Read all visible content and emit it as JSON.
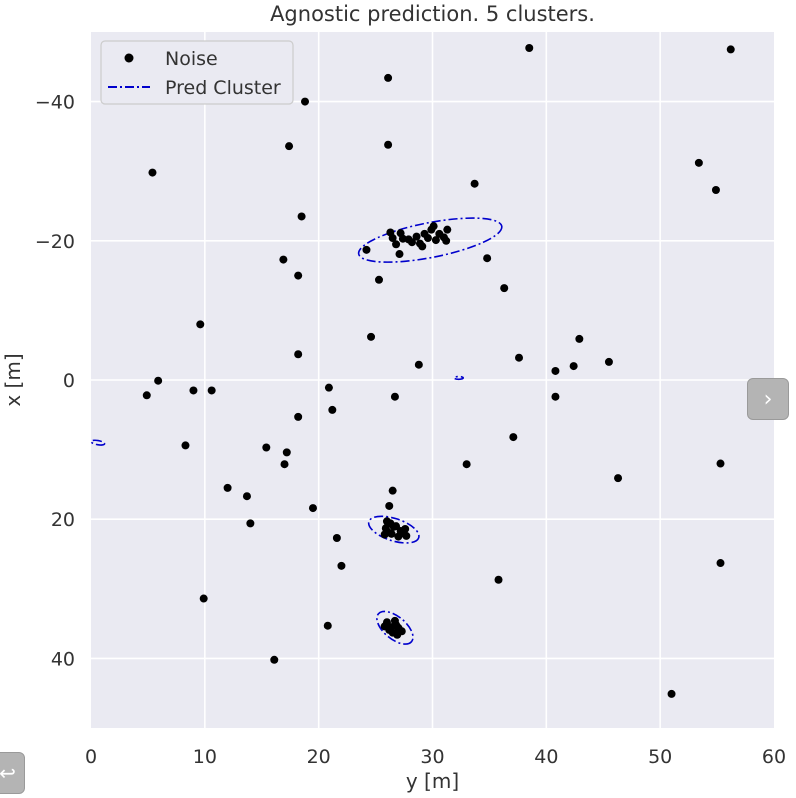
{
  "chart_data": {
    "type": "scatter",
    "title": "Agnostic prediction. 5 clusters.",
    "xlabel": "y [m]",
    "ylabel": "x [m]",
    "xlim": [
      0,
      60
    ],
    "ylim": [
      50,
      -50
    ],
    "y_inverted": true,
    "xticks": [
      0,
      10,
      20,
      30,
      40,
      50,
      60
    ],
    "yticks": [
      -40,
      -20,
      0,
      20,
      40
    ],
    "xtick_labels": [
      "0",
      "10",
      "20",
      "30",
      "40",
      "50",
      "60"
    ],
    "ytick_labels": [
      "−40",
      "−20",
      "0",
      "20",
      "40"
    ],
    "grid": true,
    "legend_position": "top-left",
    "legend": [
      {
        "label": "Noise",
        "marker": "dot",
        "color": "#000000"
      },
      {
        "label": "Pred Cluster",
        "line": "dashdot",
        "color": "#0000cc"
      }
    ],
    "series": [
      {
        "name": "Noise",
        "color": "#000000",
        "points": [
          [
            38.5,
            -47.7
          ],
          [
            56.2,
            -47.5
          ],
          [
            26.1,
            -43.4
          ],
          [
            18.8,
            -40.0
          ],
          [
            17.4,
            -33.6
          ],
          [
            26.1,
            -33.8
          ],
          [
            5.4,
            -29.8
          ],
          [
            53.4,
            -31.2
          ],
          [
            54.9,
            -27.3
          ],
          [
            33.7,
            -28.2
          ],
          [
            18.5,
            -23.5
          ],
          [
            16.9,
            -17.3
          ],
          [
            18.2,
            -15.0
          ],
          [
            25.3,
            -14.4
          ],
          [
            34.8,
            -17.5
          ],
          [
            36.3,
            -13.2
          ],
          [
            9.6,
            -8.0
          ],
          [
            24.6,
            -6.2
          ],
          [
            18.2,
            -3.7
          ],
          [
            42.9,
            -5.9
          ],
          [
            45.5,
            -2.6
          ],
          [
            28.8,
            -2.2
          ],
          [
            37.6,
            -3.2
          ],
          [
            40.8,
            -1.3
          ],
          [
            42.4,
            -2.0
          ],
          [
            5.9,
            0.1
          ],
          [
            4.9,
            2.2
          ],
          [
            9.0,
            1.5
          ],
          [
            10.6,
            1.5
          ],
          [
            20.9,
            1.1
          ],
          [
            26.7,
            2.4
          ],
          [
            40.8,
            2.4
          ],
          [
            21.2,
            4.3
          ],
          [
            18.2,
            5.3
          ],
          [
            8.3,
            9.4
          ],
          [
            15.4,
            9.7
          ],
          [
            17.2,
            10.4
          ],
          [
            37.1,
            8.2
          ],
          [
            17.0,
            12.1
          ],
          [
            33.0,
            12.1
          ],
          [
            55.3,
            12.0
          ],
          [
            46.3,
            14.1
          ],
          [
            12.0,
            15.5
          ],
          [
            26.5,
            15.9
          ],
          [
            13.7,
            16.7
          ],
          [
            26.2,
            18.1
          ],
          [
            19.5,
            18.4
          ],
          [
            14.0,
            20.6
          ],
          [
            21.6,
            22.7
          ],
          [
            22.0,
            26.7
          ],
          [
            35.8,
            28.7
          ],
          [
            55.3,
            26.3
          ],
          [
            9.9,
            31.4
          ],
          [
            20.8,
            35.3
          ],
          [
            16.1,
            40.2
          ],
          [
            51.0,
            45.1
          ],
          [
            24.2,
            -18.7
          ],
          [
            26.3,
            -21.2
          ],
          [
            26.8,
            -19.5
          ],
          [
            27.4,
            -20.3
          ],
          [
            28.2,
            -19.8
          ],
          [
            28.6,
            -20.6
          ],
          [
            29.1,
            -19.2
          ],
          [
            29.6,
            -20.4
          ],
          [
            29.9,
            -21.6
          ],
          [
            30.3,
            -20.1
          ],
          [
            30.6,
            -21.0
          ],
          [
            31.0,
            -20.5
          ],
          [
            31.3,
            -21.6
          ],
          [
            30.1,
            -22.1
          ],
          [
            29.3,
            -21.0
          ],
          [
            28.9,
            -19.6
          ],
          [
            27.9,
            -20.2
          ],
          [
            27.2,
            -21.1
          ],
          [
            26.5,
            -20.4
          ],
          [
            31.2,
            -20.0
          ],
          [
            27.1,
            -18.1
          ],
          [
            25.9,
            21.3
          ],
          [
            26.4,
            22.1
          ],
          [
            26.8,
            21.0
          ],
          [
            27.2,
            21.7
          ],
          [
            27.6,
            21.4
          ],
          [
            26.1,
            21.9
          ],
          [
            25.8,
            22.2
          ],
          [
            26.3,
            20.6
          ],
          [
            27.0,
            22.5
          ],
          [
            26.6,
            21.1
          ],
          [
            27.3,
            22.0
          ],
          [
            26.0,
            20.3
          ],
          [
            27.7,
            22.4
          ],
          [
            26.0,
            34.8
          ],
          [
            26.4,
            35.5
          ],
          [
            26.8,
            35.2
          ],
          [
            27.1,
            35.9
          ],
          [
            26.5,
            36.3
          ],
          [
            26.2,
            35.9
          ],
          [
            26.9,
            36.6
          ],
          [
            27.3,
            36.1
          ],
          [
            26.7,
            34.6
          ],
          [
            25.8,
            35.4
          ],
          [
            27.0,
            35.6
          ]
        ]
      }
    ],
    "pred_clusters": [
      {
        "name": "Pred Cluster",
        "center": [
          29.8,
          -20.1
        ],
        "rx": 6.4,
        "ry": 2.5,
        "angle_deg": -11
      },
      {
        "name": "Pred Cluster",
        "center": [
          26.6,
          21.5
        ],
        "rx": 2.3,
        "ry": 1.6,
        "angle_deg": 18
      },
      {
        "name": "Pred Cluster",
        "center": [
          26.7,
          35.6
        ],
        "rx": 1.9,
        "ry": 1.6,
        "angle_deg": 40
      },
      {
        "name": "Pred Cluster",
        "center": [
          32.3,
          -0.3
        ],
        "rx": 0.4,
        "ry": 0.2,
        "angle_deg": 0
      },
      {
        "name": "Pred Cluster",
        "center": [
          0.6,
          9.0
        ],
        "rx": 0.6,
        "ry": 0.3,
        "angle_deg": 10
      }
    ],
    "colors": {
      "background": "#eaeaf2",
      "grid": "#ffffff",
      "cluster": "#0000cc",
      "noise": "#000000"
    }
  },
  "ui": {
    "next_icon": "chevron-right-icon",
    "next_glyph": "›",
    "undo_icon": "undo-arrow-icon",
    "undo_glyph": "↩"
  }
}
